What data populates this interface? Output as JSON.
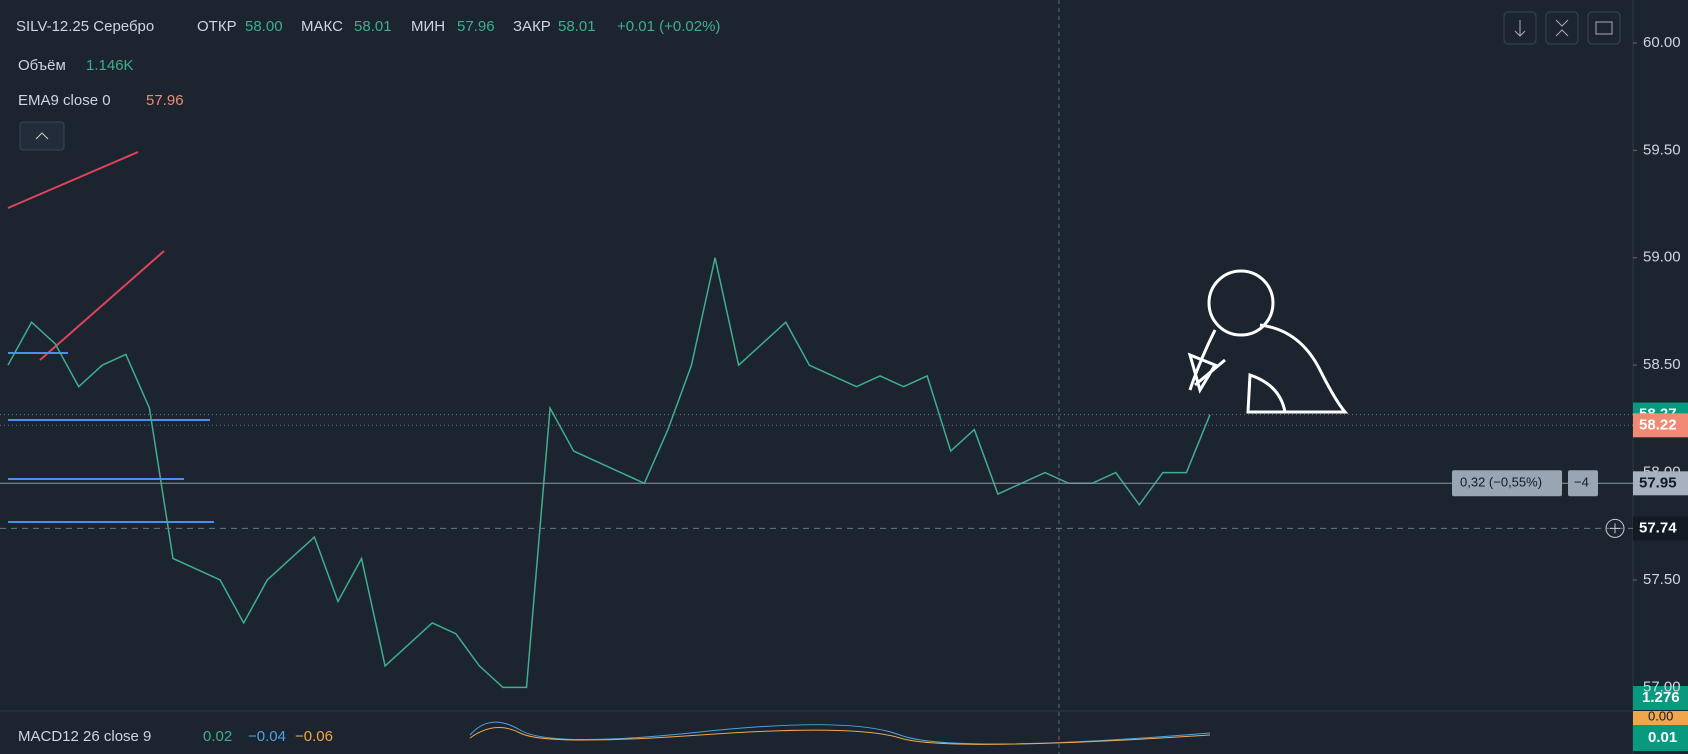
{
  "header": {
    "symbol": "SILV-12.25 Серебро",
    "open_label": "ОТКР",
    "open": "58.00",
    "high_label": "МАКС",
    "high": "58.01",
    "low_label": "МИН",
    "low": "57.96",
    "close_label": "ЗАКР",
    "close": "58.01",
    "change": "+0.01 (+0.02%)",
    "volume_label": "Объём",
    "volume": "1.146K",
    "ema_label": "EMA9 close 0",
    "ema": "57.96"
  },
  "macd": {
    "label": "MACD12 26 close 9",
    "v1": "0.02",
    "v2": "−0.04",
    "v3": "−0.06",
    "badge_top": "0.00",
    "badge_bottom": "0.01"
  },
  "volume_badge": "1.276",
  "chart_data": {
    "type": "line",
    "color": "#3fae8c",
    "categories": [
      null,
      null,
      null,
      null,
      null,
      null,
      null,
      null,
      null,
      null,
      null,
      null,
      null,
      null,
      null,
      null,
      null,
      null,
      null,
      null,
      null,
      null,
      null,
      null,
      null,
      null,
      null,
      null,
      null,
      null,
      null,
      null,
      null,
      null,
      null,
      null,
      null,
      null,
      null,
      null,
      null,
      null,
      null,
      null,
      null,
      null,
      null,
      null,
      null,
      null,
      null,
      null
    ],
    "values": [
      58.5,
      58.7,
      58.6,
      58.4,
      58.5,
      58.55,
      58.3,
      57.6,
      57.55,
      57.5,
      57.3,
      57.5,
      57.6,
      57.7,
      57.4,
      57.6,
      57.1,
      57.2,
      57.3,
      57.25,
      57.1,
      57.0,
      57.0,
      58.3,
      58.1,
      58.05,
      58.0,
      57.95,
      58.2,
      58.5,
      59.0,
      58.5,
      58.6,
      58.7,
      58.5,
      58.45,
      58.4,
      58.45,
      58.4,
      58.45,
      58.1,
      58.2,
      57.9,
      57.95,
      58.0,
      57.95,
      57.95,
      58.0,
      57.85,
      58.0,
      58.0,
      58.27
    ],
    "ylim": [
      56.89,
      60.2
    ],
    "yticks": [
      {
        "value": 60,
        "label": "60.00"
      },
      {
        "value": 59.5,
        "label": "59.50"
      },
      {
        "value": 59,
        "label": "59.00"
      },
      {
        "value": 58.5,
        "label": "58.50"
      },
      {
        "value": 58,
        "label": "58.00"
      },
      {
        "value": 57.5,
        "label": "57.50"
      },
      {
        "value": 57,
        "label": "57.00"
      }
    ],
    "price_lines": [
      58.27,
      58.22,
      57.95,
      57.74
    ],
    "price_line_colors": [
      "#089981",
      "#f08a74",
      "#a7b1bf",
      "#131a24"
    ],
    "annotations": [
      "0,32 (−0,55%)",
      "−4"
    ]
  }
}
